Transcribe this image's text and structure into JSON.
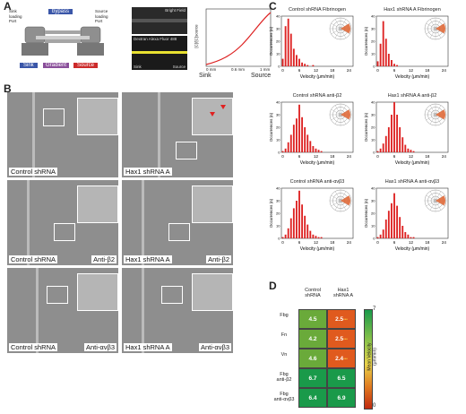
{
  "panel_labels": {
    "a": "A",
    "b": "B",
    "c": "C",
    "d": "D"
  },
  "panel_a": {
    "bypass": "bypass",
    "sink_port": "Sink\nloading\nPort",
    "source_port": "Source\nloading\nPort",
    "legend": [
      "Sink",
      "Gradient",
      "Source"
    ],
    "micro_top_label": "Bright Field",
    "micro_bottom_label": "Dextran Alexa Fluor 488",
    "micro_bottom_sink": "Sink",
    "micro_bottom_source": "Source",
    "plot_ylabel": "[C]/[C]source",
    "plot_xlabel_left": "Sink",
    "plot_xlabel_right": "Source",
    "plot_x_ticks": [
      "0 mm",
      "0.6 mm",
      "1 mm"
    ],
    "colors": {
      "sink": "#3a56a8",
      "gradient": "#8a4f9a",
      "source": "#cc2a2a",
      "bypass": "#3a56a8",
      "curve": "#dd2222"
    }
  },
  "panel_b": {
    "rows": [
      {
        "left": "Control shRNA",
        "right": "Hax1 shRNA A",
        "left_extra": "",
        "right_extra": ""
      },
      {
        "left": "Control shRNA",
        "right": "Hax1 shRNA A",
        "left_extra": "Anti-β2",
        "right_extra": "Anti-β2"
      },
      {
        "left": "Control shRNA",
        "right": "Hax1 shRNA A",
        "left_extra": "Anti-ανβ3",
        "right_extra": "Anti-ανβ3"
      }
    ]
  },
  "panel_c": {
    "ylabel": "Occurrences (n)",
    "xlabel": "Velocity (μm/min)",
    "x_ticks": [
      "0",
      "6",
      "12",
      "18",
      "24"
    ],
    "y_ticks": [
      "0",
      "10",
      "20",
      "30",
      "40"
    ]
  },
  "chart_data": [
    {
      "type": "bar",
      "title": "Control shRNA Fibrinogen",
      "xlabel": "Velocity (μm/min)",
      "ylabel": "Occurrences (n)",
      "x": [
        0,
        1,
        2,
        3,
        4,
        5,
        6,
        7,
        8,
        9,
        10,
        11,
        12,
        13,
        14,
        15,
        16,
        17,
        18,
        19,
        20,
        21,
        22,
        23,
        24,
        25
      ],
      "values": [
        6,
        32,
        38,
        26,
        14,
        9,
        6,
        3,
        2,
        1,
        0,
        1,
        0,
        0,
        0,
        0,
        0,
        0,
        0,
        0,
        0,
        0,
        0,
        0,
        0,
        0
      ],
      "ylim": [
        0,
        40
      ]
    },
    {
      "type": "bar",
      "title": "Hax1 shRNA A Fibrinogen",
      "xlabel": "Velocity (μm/min)",
      "ylabel": "Occurrences (n)",
      "x": [
        0,
        1,
        2,
        3,
        4,
        5,
        6,
        7,
        8,
        9,
        10,
        11,
        12,
        13,
        14,
        15,
        16,
        17,
        18,
        19,
        20,
        21,
        22,
        23,
        24,
        25
      ],
      "values": [
        4,
        18,
        36,
        22,
        10,
        5,
        2,
        1,
        0,
        0,
        0,
        0,
        0,
        0,
        0,
        0,
        0,
        0,
        0,
        0,
        0,
        0,
        0,
        0,
        0,
        0
      ],
      "ylim": [
        0,
        40
      ]
    },
    {
      "type": "bar",
      "title": "Control shRNA anti-β2",
      "xlabel": "Velocity (μm/min)",
      "ylabel": "Occurrences (n)",
      "x": [
        0,
        1,
        2,
        3,
        4,
        5,
        6,
        7,
        8,
        9,
        10,
        11,
        12,
        13,
        14,
        15,
        16,
        17,
        18,
        19,
        20,
        21,
        22,
        23,
        24,
        25
      ],
      "values": [
        1,
        3,
        8,
        14,
        22,
        27,
        38,
        28,
        20,
        14,
        9,
        5,
        3,
        2,
        1,
        0,
        0,
        0,
        0,
        0,
        0,
        0,
        0,
        0,
        0,
        0
      ],
      "ylim": [
        0,
        40
      ]
    },
    {
      "type": "bar",
      "title": "Hax1 shRNA A anti-β2",
      "xlabel": "Velocity (μm/min)",
      "ylabel": "Occurrences (n)",
      "x": [
        0,
        1,
        2,
        3,
        4,
        5,
        6,
        7,
        8,
        9,
        10,
        11,
        12,
        13,
        14,
        15,
        16,
        17,
        18,
        19,
        20,
        21,
        22,
        23,
        24,
        25
      ],
      "values": [
        1,
        3,
        7,
        13,
        20,
        30,
        40,
        30,
        20,
        12,
        6,
        3,
        2,
        1,
        0,
        0,
        0,
        0,
        0,
        0,
        0,
        0,
        0,
        0,
        0,
        0
      ],
      "ylim": [
        0,
        40
      ]
    },
    {
      "type": "bar",
      "title": "Control shRNA anti-ανβ3",
      "xlabel": "Velocity (μm/min)",
      "ylabel": "Occurrences (n)",
      "x": [
        0,
        1,
        2,
        3,
        4,
        5,
        6,
        7,
        8,
        9,
        10,
        11,
        12,
        13,
        14,
        15,
        16,
        17,
        18,
        19,
        20,
        21,
        22,
        23,
        24,
        25
      ],
      "values": [
        1,
        3,
        8,
        16,
        24,
        30,
        38,
        27,
        18,
        11,
        6,
        3,
        2,
        1,
        1,
        0,
        0,
        0,
        0,
        0,
        0,
        0,
        0,
        0,
        0,
        0
      ],
      "ylim": [
        0,
        40
      ]
    },
    {
      "type": "bar",
      "title": "Hax1 shRNA A anti-ανβ3",
      "xlabel": "Velocity (μm/min)",
      "ylabel": "Occurrences (n)",
      "x": [
        0,
        1,
        2,
        3,
        4,
        5,
        6,
        7,
        8,
        9,
        10,
        11,
        12,
        13,
        14,
        15,
        16,
        17,
        18,
        19,
        20,
        21,
        22,
        23,
        24,
        25
      ],
      "values": [
        1,
        3,
        7,
        15,
        22,
        28,
        36,
        26,
        17,
        10,
        5,
        3,
        1,
        1,
        0,
        0,
        0,
        0,
        0,
        0,
        0,
        0,
        0,
        0,
        0,
        0
      ],
      "ylim": [
        0,
        40
      ]
    },
    {
      "type": "heatmap",
      "title": "",
      "columns": [
        "Control shRNA",
        "Hax1 shRNA A"
      ],
      "rows": [
        "Fbg",
        "Fn",
        "Vn",
        "Fbg anti-β2",
        "Fbg anti-ανβ3"
      ],
      "values": [
        [
          4.5,
          2.5
        ],
        [
          4.2,
          2.5
        ],
        [
          4.6,
          2.4
        ],
        [
          6.7,
          6.5
        ],
        [
          6.4,
          6.9
        ]
      ],
      "annotations": [
        [
          "",
          "***"
        ],
        [
          "",
          "***"
        ],
        [
          "",
          "***"
        ],
        [
          "",
          ""
        ],
        [
          "",
          ""
        ]
      ],
      "colorbar_label": "Mean Velocity (μm/min)",
      "colorbar_range": [
        0,
        7
      ]
    }
  ],
  "panel_d": {
    "col_headers": [
      "Control\nshRNA",
      "Hax1\nshRNA A"
    ],
    "row_labels": [
      "Fbg",
      "Fn",
      "Vn",
      "Fbg\nanti-β2",
      "Fbg\nanti-ανβ3"
    ],
    "cells": [
      [
        "4.5",
        "2.5"
      ],
      [
        "4.2",
        "2.5"
      ],
      [
        "4.6",
        "2.4"
      ],
      [
        "6.7",
        "6.5"
      ],
      [
        "6.4",
        "6.9"
      ]
    ],
    "stars": [
      [
        "",
        "***"
      ],
      [
        "",
        "***"
      ],
      [
        "",
        "***"
      ],
      [
        "",
        ""
      ],
      [
        "",
        ""
      ]
    ],
    "colorbar_top": "7",
    "colorbar_bottom": "0",
    "colorbar_label": "Mean Velocity\n(μm/min)",
    "colors": {
      "high": "#1a9a4a",
      "mid": "#e8d24a",
      "low": "#e05a1e",
      "star": "#ffd84a"
    }
  }
}
